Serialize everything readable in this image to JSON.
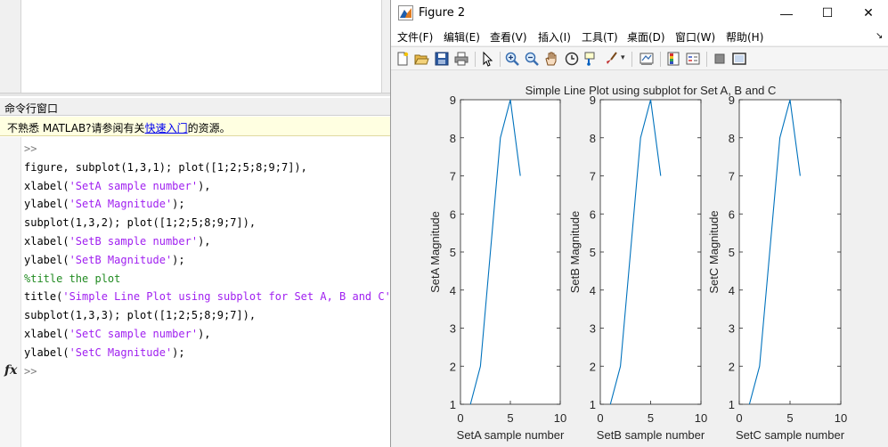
{
  "command_window": {
    "title": "命令行窗口",
    "notice": {
      "prefix": "不熟悉 MATLAB?请参阅有关",
      "link": "快速入门",
      "suffix": "的资源。"
    },
    "prompt": ">>",
    "lines": [
      {
        "kind": "prompt",
        "parts": [
          {
            "t": ">>",
            "c": "prompt"
          }
        ]
      },
      {
        "kind": "code",
        "parts": [
          {
            "t": "figure, subplot(1,3,1); plot([1;2;5;8;9;7]),",
            "c": ""
          }
        ]
      },
      {
        "kind": "code",
        "parts": [
          {
            "t": "xlabel(",
            "c": ""
          },
          {
            "t": "'SetA sample number'",
            "c": "str"
          },
          {
            "t": "),",
            "c": ""
          }
        ]
      },
      {
        "kind": "code",
        "parts": [
          {
            "t": "ylabel(",
            "c": ""
          },
          {
            "t": "'SetA Magnitude'",
            "c": "str"
          },
          {
            "t": ");",
            "c": ""
          }
        ]
      },
      {
        "kind": "code",
        "parts": [
          {
            "t": "subplot(1,3,2); plot([1;2;5;8;9;7]),",
            "c": ""
          }
        ]
      },
      {
        "kind": "code",
        "parts": [
          {
            "t": "xlabel(",
            "c": ""
          },
          {
            "t": "'SetB sample number'",
            "c": "str"
          },
          {
            "t": "),",
            "c": ""
          }
        ]
      },
      {
        "kind": "code",
        "parts": [
          {
            "t": "ylabel(",
            "c": ""
          },
          {
            "t": "'SetB Magnitude'",
            "c": "str"
          },
          {
            "t": ");",
            "c": ""
          }
        ]
      },
      {
        "kind": "code",
        "parts": [
          {
            "t": "%title the plot",
            "c": "cmt"
          }
        ]
      },
      {
        "kind": "code",
        "parts": [
          {
            "t": "title(",
            "c": ""
          },
          {
            "t": "'Simple Line Plot using subplot for Set A, B and C'",
            "c": "str"
          },
          {
            "t": ")",
            "c": ""
          }
        ]
      },
      {
        "kind": "code",
        "parts": [
          {
            "t": "subplot(1,3,3); plot([1;2;5;8;9;7]),",
            "c": ""
          }
        ]
      },
      {
        "kind": "code",
        "parts": [
          {
            "t": "xlabel(",
            "c": ""
          },
          {
            "t": "'SetC sample number'",
            "c": "str"
          },
          {
            "t": "),",
            "c": ""
          }
        ]
      },
      {
        "kind": "code",
        "parts": [
          {
            "t": "ylabel(",
            "c": ""
          },
          {
            "t": "'SetC Magnitude'",
            "c": "str"
          },
          {
            "t": ");",
            "c": ""
          }
        ]
      },
      {
        "kind": "prompt",
        "parts": [
          {
            "t": ">>",
            "c": "prompt"
          }
        ]
      }
    ],
    "fx_glyph": "fx"
  },
  "figure_window": {
    "title": "Figure 2",
    "controls": {
      "minimize": "—",
      "maximize": "☐",
      "close": "✕"
    },
    "menu": [
      "文件(F)",
      "编辑(E)",
      "查看(V)",
      "插入(I)",
      "工具(T)",
      "桌面(D)",
      "窗口(W)",
      "帮助(H)"
    ],
    "menu_overflow": "↘",
    "toolbar_icons": [
      "new-figure-icon",
      "open-file-icon",
      "save-icon",
      "print-icon",
      "pointer-icon",
      "zoom-in-icon",
      "zoom-out-icon",
      "pan-icon",
      "rotate-3d-icon",
      "data-cursor-icon",
      "brush-icon",
      "brush-dropdown-icon",
      "link-plot-icon",
      "colorbar-icon",
      "legend-icon",
      "hide-plot-tools-icon",
      "show-plot-tools-icon"
    ]
  },
  "colors": {
    "line": "#0072BD",
    "matlab_string": "#A020F0",
    "matlab_comment": "#228B22"
  },
  "chart_data": [
    {
      "type": "line",
      "title": "",
      "xlabel": "SetA sample number",
      "ylabel": "SetA Magnitude",
      "x": [
        1,
        2,
        3,
        4,
        5,
        6
      ],
      "values": [
        1,
        2,
        5,
        8,
        9,
        7
      ],
      "xlim": [
        0,
        10
      ],
      "ylim": [
        1,
        9
      ],
      "xticks": [
        0,
        5,
        10
      ],
      "yticks": [
        1,
        2,
        3,
        4,
        5,
        6,
        7,
        8,
        9
      ],
      "grid": false
    },
    {
      "type": "line",
      "title": "Simple Line Plot using subplot for Set A, B and C",
      "xlabel": "SetB sample number",
      "ylabel": "SetB Magnitude",
      "x": [
        1,
        2,
        3,
        4,
        5,
        6
      ],
      "values": [
        1,
        2,
        5,
        8,
        9,
        7
      ],
      "xlim": [
        0,
        10
      ],
      "ylim": [
        1,
        9
      ],
      "xticks": [
        0,
        5,
        10
      ],
      "yticks": [
        1,
        2,
        3,
        4,
        5,
        6,
        7,
        8,
        9
      ],
      "grid": false
    },
    {
      "type": "line",
      "title": "",
      "xlabel": "SetC sample number",
      "ylabel": "SetC Magnitude",
      "x": [
        1,
        2,
        3,
        4,
        5,
        6
      ],
      "values": [
        1,
        2,
        5,
        8,
        9,
        7
      ],
      "xlim": [
        0,
        10
      ],
      "ylim": [
        1,
        9
      ],
      "xticks": [
        0,
        5,
        10
      ],
      "yticks": [
        1,
        2,
        3,
        4,
        5,
        6,
        7,
        8,
        9
      ],
      "grid": false
    }
  ]
}
